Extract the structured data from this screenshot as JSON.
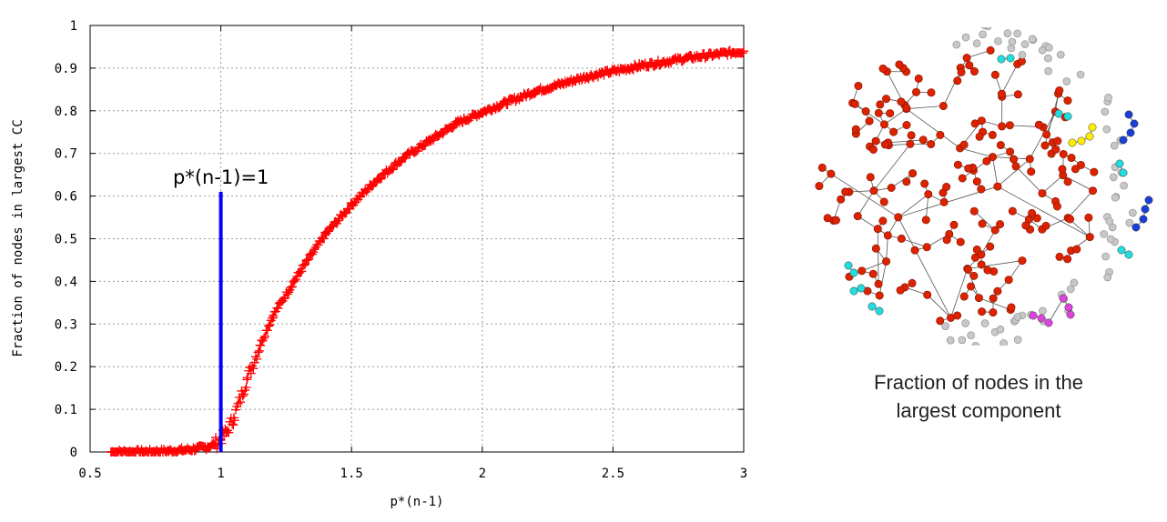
{
  "chart_data": {
    "type": "scatter",
    "xlabel": "p*(n-1)",
    "ylabel": "Fraction of nodes in largest CC",
    "xlim": [
      0.5,
      3
    ],
    "ylim": [
      0,
      1
    ],
    "x_ticks": [
      "0.5",
      "1",
      "1.5",
      "2",
      "2.5",
      "3"
    ],
    "y_ticks": [
      "0",
      "0.1",
      "0.2",
      "0.3",
      "0.4",
      "0.5",
      "0.6",
      "0.7",
      "0.8",
      "0.9",
      "1"
    ],
    "grid": true,
    "series": [
      {
        "color": "#ff0000",
        "marker": "+",
        "points": [
          [
            0.58,
            0.0
          ],
          [
            0.65,
            0.0
          ],
          [
            0.7,
            0.0
          ],
          [
            0.75,
            0.001
          ],
          [
            0.8,
            0.002
          ],
          [
            0.85,
            0.004
          ],
          [
            0.9,
            0.007
          ],
          [
            0.95,
            0.012
          ],
          [
            0.98,
            0.02
          ],
          [
            1.0,
            0.03
          ],
          [
            1.02,
            0.045
          ],
          [
            1.05,
            0.08
          ],
          [
            1.1,
            0.17
          ],
          [
            1.15,
            0.25
          ],
          [
            1.2,
            0.32
          ],
          [
            1.3,
            0.42
          ],
          [
            1.4,
            0.51
          ],
          [
            1.5,
            0.58
          ],
          [
            1.6,
            0.64
          ],
          [
            1.7,
            0.69
          ],
          [
            1.8,
            0.73
          ],
          [
            1.9,
            0.77
          ],
          [
            2.0,
            0.797
          ],
          [
            2.2,
            0.845
          ],
          [
            2.4,
            0.88
          ],
          [
            2.6,
            0.905
          ],
          [
            2.8,
            0.925
          ],
          [
            3.0,
            0.94
          ]
        ]
      }
    ],
    "vline": {
      "x": 1,
      "y_top": 0.61,
      "color": "#0000ff"
    },
    "annotation": "p*(n-1)=1"
  },
  "network": {
    "caption_line1": "Fraction of nodes in the",
    "caption_line2": "largest component",
    "colors": {
      "giant": "#dd2200",
      "isolated": "#c8c8c8",
      "cyan": "#22dddd",
      "yellow": "#ffee00",
      "blue": "#1a3fd6",
      "magenta": "#dd44dd",
      "edge": "#555555"
    }
  }
}
